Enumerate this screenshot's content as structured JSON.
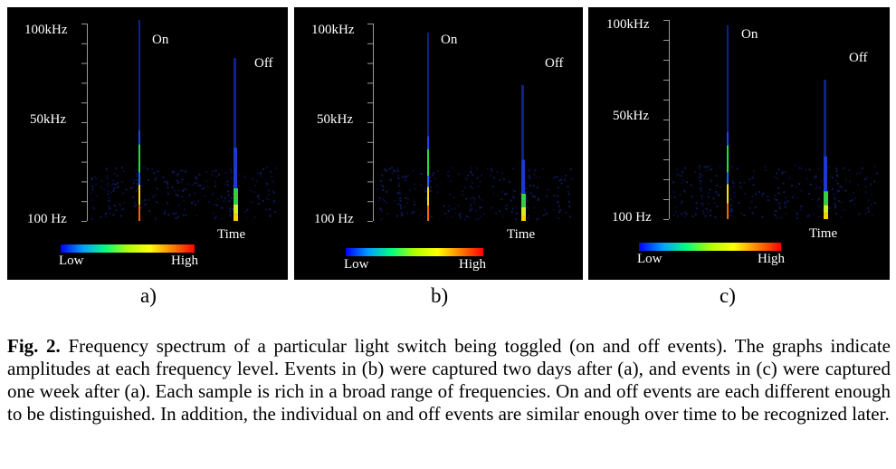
{
  "colors": {
    "background": "#000000",
    "colorbar_stops": [
      "#0000ff",
      "#00a0ff",
      "#00ff80",
      "#b0ff00",
      "#ffff00",
      "#ff8000",
      "#ff0000"
    ]
  },
  "panels": [
    {
      "id": "a",
      "label": "a)",
      "y_top_label": "100kHz",
      "y_mid_label": "50kHz",
      "y_bottom_label": "100 Hz",
      "x_label": "Time",
      "on_label": "On",
      "off_label": "Off",
      "legend_low": "Low",
      "legend_high": "High"
    },
    {
      "id": "b",
      "label": "b)",
      "y_top_label": "100kHz",
      "y_mid_label": "50kHz",
      "y_bottom_label": "100 Hz",
      "x_label": "Time",
      "on_label": "On",
      "off_label": "Off",
      "legend_low": "Low",
      "legend_high": "High"
    },
    {
      "id": "c",
      "label": "c)",
      "y_top_label": "100kHz",
      "y_mid_label": "50kHz",
      "y_bottom_label": "100 Hz",
      "x_label": "Time",
      "on_label": "On",
      "off_label": "Off",
      "legend_low": "Low",
      "legend_high": "High"
    }
  ],
  "caption": {
    "label": "Fig. 2.",
    "text": "Frequency spectrum of a particular light switch being toggled (on and off events). The graphs indicate amplitudes at each frequency level. Events in (b) were captured two days after (a), and events in (c) were captured one week after (a). Each sample is rich in a broad range of frequencies. On and off events are each different enough to be distinguished. In addition, the individual on and off events are similar enough over time to be recognized later."
  }
}
